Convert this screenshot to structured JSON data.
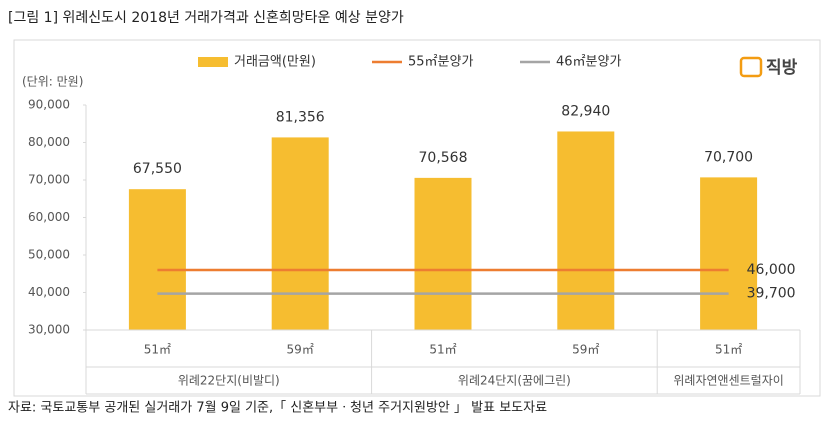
{
  "chart_data": {
    "type": "bar",
    "title": "[그림 1] 위례신도시 2018년 거래가격과 신혼희망타운 예상 분양가",
    "unit_label": "(단위: 만원)",
    "logo": "직방",
    "source": "자료: 국토교통부 공개된 실거래가 7월 9일 기준,「 신혼부부ㆍ청년 주거지원방안 」 발표 보도자료",
    "groups": [
      {
        "name": "위례22단지(비발디)",
        "categories": [
          "51㎡",
          "59㎡"
        ]
      },
      {
        "name": "위례24단지(꿈에그린)",
        "categories": [
          "51㎡",
          "59㎡"
        ]
      },
      {
        "name": "위례자연앤센트럴자이",
        "categories": [
          "51㎡"
        ]
      }
    ],
    "series": [
      {
        "name": "거래금액(만원)",
        "type": "bar",
        "color": "#f6bd30",
        "values": [
          67550,
          81356,
          70568,
          82940,
          70700
        ],
        "value_labels": [
          "67,550",
          "81,356",
          "70,568",
          "82,940",
          "70,700"
        ]
      },
      {
        "name": "55㎡분양가",
        "type": "line",
        "color": "#ed7d31",
        "values": [
          46000,
          46000,
          46000,
          46000,
          46000
        ],
        "value_labels": [
          null,
          null,
          null,
          null,
          "46,000"
        ]
      },
      {
        "name": "46㎡분양가",
        "type": "line",
        "color": "#a5a5a5",
        "values": [
          39700,
          39700,
          39700,
          39700,
          39700
        ],
        "value_labels": [
          null,
          null,
          null,
          null,
          "39,700"
        ]
      }
    ],
    "ylim": [
      30000,
      90000
    ],
    "yticks": [
      {
        "value": 30000,
        "label": "30,000"
      },
      {
        "value": 40000,
        "label": "40,000"
      },
      {
        "value": 50000,
        "label": "50,000"
      },
      {
        "value": 60000,
        "label": "60,000"
      },
      {
        "value": 70000,
        "label": "70,000"
      },
      {
        "value": 80000,
        "label": "80,000"
      },
      {
        "value": 90000,
        "label": "90,000"
      }
    ],
    "grid": false
  }
}
